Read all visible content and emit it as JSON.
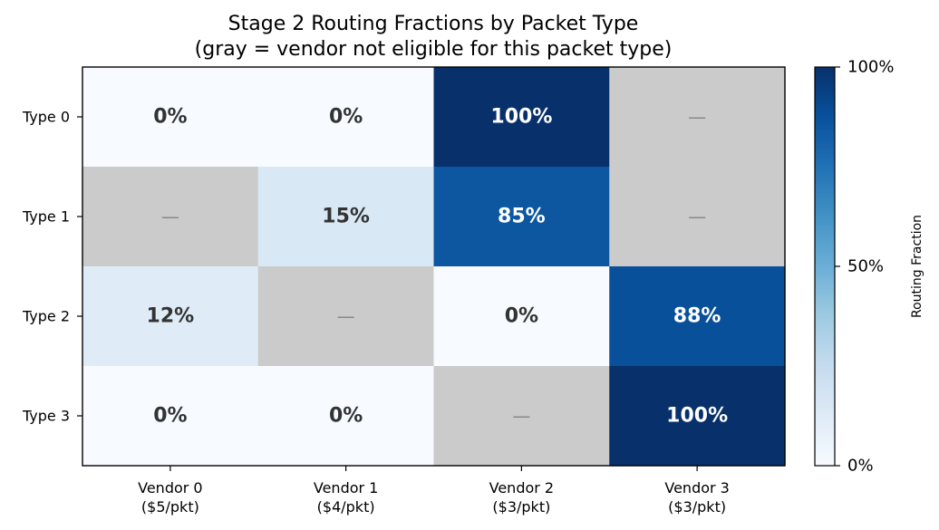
{
  "chart_data": {
    "type": "heatmap",
    "title_lines": [
      "Stage 2 Routing Fractions by Packet Type",
      "(gray = vendor not eligible for this packet type)"
    ],
    "rows": [
      "Type 0",
      "Type 1",
      "Type 2",
      "Type 3"
    ],
    "columns": [
      [
        "Vendor 0",
        "($5/pkt)"
      ],
      [
        "Vendor 1",
        "($4/pkt)"
      ],
      [
        "Vendor 2",
        "($3/pkt)"
      ],
      [
        "Vendor 3",
        "($3/pkt)"
      ]
    ],
    "values": [
      [
        0,
        0,
        100,
        null
      ],
      [
        null,
        15,
        85,
        null
      ],
      [
        12,
        null,
        0,
        88
      ],
      [
        0,
        0,
        null,
        100
      ]
    ],
    "value_unit": "%",
    "ineligible_marker": "—",
    "ineligible_color": "#cbcbcb",
    "colormap": "Blues",
    "colormap_stops": [
      "#f7fbff",
      "#deebf7",
      "#c6dbef",
      "#9ecae1",
      "#6baed6",
      "#4292c6",
      "#2171b5",
      "#08519c",
      "#08306b"
    ],
    "text_color_dark": "#333333",
    "text_color_light": "#ffffff",
    "colorbar": {
      "label": "Routing Fraction",
      "range": [
        0,
        100
      ],
      "ticks": [
        "0%",
        "50%",
        "100%"
      ]
    }
  }
}
